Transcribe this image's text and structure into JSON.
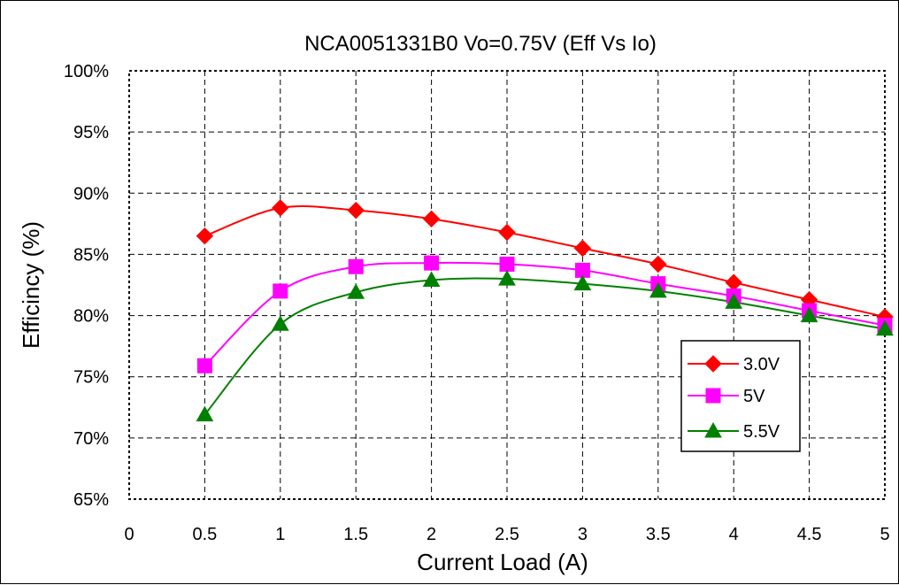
{
  "chart_data": {
    "type": "line",
    "title": "NCA0051331B0 Vo=0.75V (Eff Vs Io)",
    "xlabel": "Current Load (A)",
    "ylabel": "Efficincy (%)",
    "xlim": [
      0,
      5
    ],
    "ylim": [
      65,
      100
    ],
    "x_ticks": [
      0,
      0.5,
      1,
      1.5,
      2,
      2.5,
      3,
      3.5,
      4,
      4.5,
      5
    ],
    "x_tick_labels": [
      "0",
      "0.5",
      "1",
      "1.5",
      "2",
      "2.5",
      "3",
      "3.5",
      "4",
      "4.5",
      "5"
    ],
    "y_ticks": [
      65,
      70,
      75,
      80,
      85,
      90,
      95,
      100
    ],
    "y_tick_labels": [
      "65%",
      "70%",
      "75%",
      "80%",
      "85%",
      "90%",
      "95%",
      "100%"
    ],
    "grid": true,
    "legend_position": "right",
    "x": [
      0.5,
      1,
      1.5,
      2,
      2.5,
      3,
      3.5,
      4,
      4.5,
      5
    ],
    "series": [
      {
        "name": "3.0V",
        "color": "#ff0000",
        "marker": "diamond",
        "values": [
          86.5,
          88.8,
          88.6,
          87.9,
          86.8,
          85.5,
          84.2,
          82.7,
          81.3,
          79.9
        ]
      },
      {
        "name": "5V",
        "color": "#ff00ff",
        "marker": "square",
        "values": [
          75.9,
          82.0,
          84.0,
          84.3,
          84.2,
          83.7,
          82.6,
          81.6,
          80.4,
          79.2
        ]
      },
      {
        "name": "5.5V",
        "color": "#008000",
        "marker": "triangle",
        "values": [
          71.9,
          79.3,
          81.9,
          82.9,
          83.0,
          82.6,
          82.0,
          81.1,
          80.0,
          78.9
        ]
      }
    ]
  }
}
